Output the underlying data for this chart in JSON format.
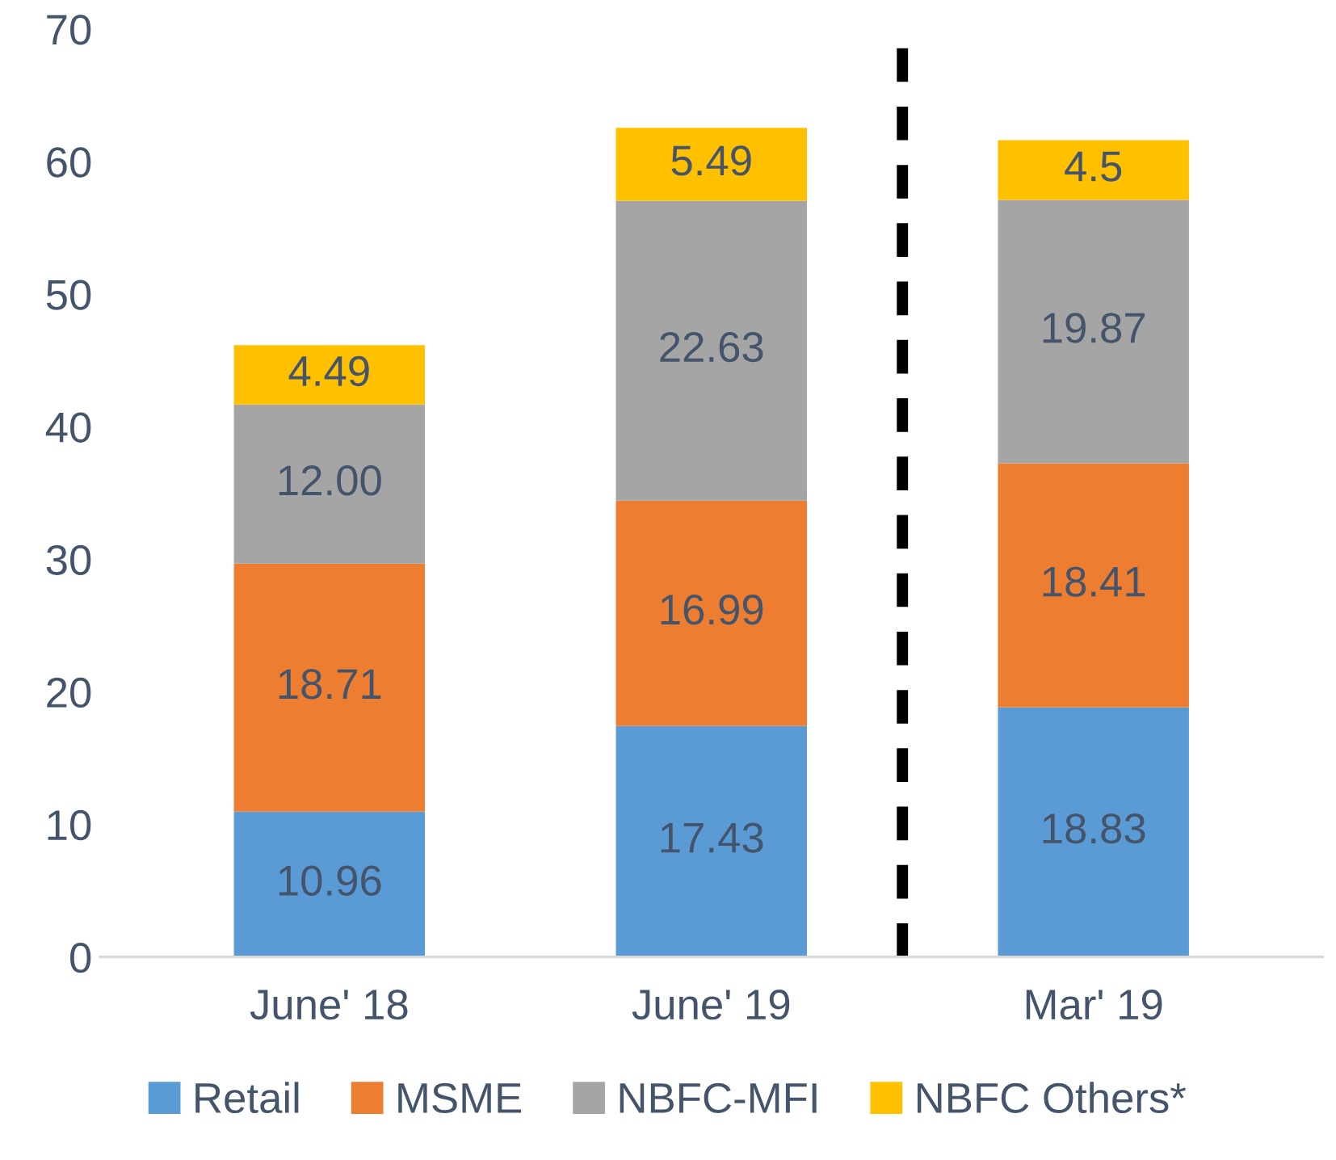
{
  "chart_data": {
    "type": "bar",
    "stacked": true,
    "categories": [
      "June' 18",
      "June' 19",
      "Mar' 19"
    ],
    "series": [
      {
        "name": "Retail",
        "color": "#5b9bd5",
        "values": [
          10.96,
          17.43,
          18.83
        ],
        "value_labels": [
          "10.96",
          "17.43",
          "18.83"
        ]
      },
      {
        "name": "MSME",
        "color": "#ed7d31",
        "values": [
          18.71,
          16.99,
          18.41
        ],
        "value_labels": [
          "18.71",
          "16.99",
          "18.41"
        ]
      },
      {
        "name": "NBFC-MFI",
        "color": "#a5a5a5",
        "values": [
          12.0,
          22.63,
          19.87
        ],
        "value_labels": [
          "12.00",
          "22.63",
          "19.87"
        ]
      },
      {
        "name": "NBFC Others*",
        "color": "#ffc000",
        "values": [
          4.49,
          5.49,
          4.5
        ],
        "value_labels": [
          "4.49",
          "5.49",
          "4.5"
        ]
      }
    ],
    "ylim": [
      0,
      70
    ],
    "yticks": [
      0,
      10,
      20,
      30,
      40,
      50,
      60,
      70
    ],
    "grid": false,
    "legend": "bottom"
  }
}
